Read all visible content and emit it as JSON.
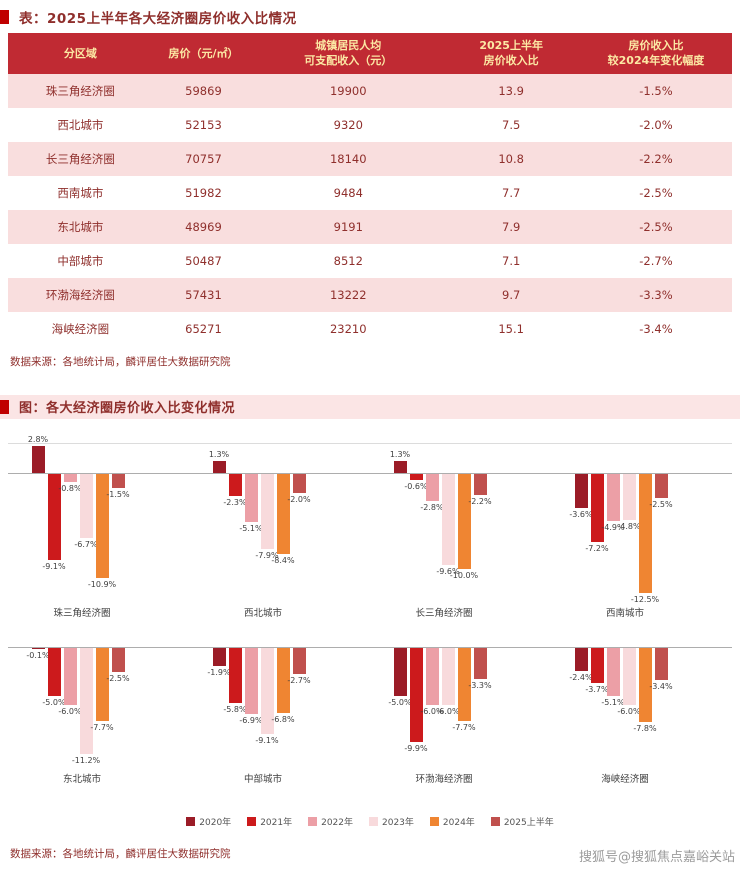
{
  "page": {
    "watermark": "搜狐号@搜狐焦点嘉峪关站"
  },
  "colors": {
    "accent_red": "#C00000",
    "table_header_bg": "#C02A33",
    "table_header_text": "#FCE8A4",
    "row_stripe_pink": "#F9DEDE",
    "body_text_red": "#8F2F2C",
    "chart_banner_pink": "#FBE5E5"
  },
  "table_section": {
    "title": "表：2025上半年各大经济圈房价收入比情况",
    "columns": [
      "分区域",
      "房价（元/㎡）",
      "城镇居民人均\n可支配收入（元）",
      "2025上半年\n房价收入比",
      "房价收入比\n较2024年变化幅度"
    ],
    "rows": [
      [
        "珠三角经济圈",
        "59869",
        "19900",
        "13.9",
        "-1.5%"
      ],
      [
        "西北城市",
        "52153",
        "9320",
        "7.5",
        "-2.0%"
      ],
      [
        "长三角经济圈",
        "70757",
        "18140",
        "10.8",
        "-2.2%"
      ],
      [
        "西南城市",
        "51982",
        "9484",
        "7.7",
        "-2.5%"
      ],
      [
        "东北城市",
        "48969",
        "9191",
        "7.9",
        "-2.5%"
      ],
      [
        "中部城市",
        "50487",
        "8512",
        "7.1",
        "-2.7%"
      ],
      [
        "环渤海经济圈",
        "57431",
        "13222",
        "9.7",
        "-3.3%"
      ],
      [
        "海峡经济圈",
        "65271",
        "23210",
        "15.1",
        "-3.4%"
      ]
    ],
    "source": "数据来源：各地统计局，麟评居住大数据研究院"
  },
  "chart_section": {
    "title": "图：各大经济圈房价收入比变化情况",
    "source": "数据来源：各地统计局，麟评居住大数据研究院"
  },
  "chart_data": {
    "type": "bar",
    "title": "各大经济圈房价收入比变化情况",
    "unit": "%",
    "ylim": [
      -13,
      3
    ],
    "legend": [
      "2020年",
      "2021年",
      "2022年",
      "2023年",
      "2024年",
      "2025上半年"
    ],
    "series_colors": [
      "#9B1C27",
      "#CC1A1C",
      "#EC9FA6",
      "#F8DADC",
      "#EF8532",
      "#C0504D"
    ],
    "legend_position": "bottom",
    "grid": "zero-axis-only",
    "groups": [
      {
        "name": "珠三角经济圈",
        "values": [
          2.8,
          -9.1,
          -0.8,
          -6.7,
          -10.9,
          -1.5
        ]
      },
      {
        "name": "西北城市",
        "values": [
          1.3,
          -2.3,
          -5.1,
          -7.9,
          -8.4,
          -2.0
        ]
      },
      {
        "name": "长三角经济圈",
        "values": [
          1.3,
          -0.6,
          -2.8,
          -9.6,
          -10.0,
          -2.2
        ]
      },
      {
        "name": "西南城市",
        "values": [
          -3.6,
          -7.2,
          -4.9,
          -4.8,
          -12.5,
          -2.5
        ]
      },
      {
        "name": "东北城市",
        "values": [
          -0.1,
          -5.0,
          -6.0,
          -11.2,
          -7.7,
          -2.5
        ]
      },
      {
        "name": "中部城市",
        "values": [
          -1.9,
          -5.8,
          -6.9,
          -9.1,
          -6.8,
          -2.7
        ]
      },
      {
        "name": "环渤海经济圈",
        "values": [
          -5.0,
          -9.9,
          -6.0,
          -6.0,
          -7.7,
          -3.3
        ]
      },
      {
        "name": "海峡经济圈",
        "values": [
          -2.4,
          -3.7,
          -5.1,
          -6.0,
          -7.8,
          -3.4
        ]
      }
    ]
  }
}
